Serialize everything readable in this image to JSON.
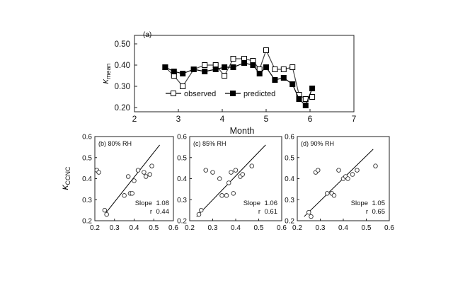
{
  "chart_data": [
    {
      "id": "top",
      "type": "line",
      "title": "",
      "panel_label": "(a)",
      "xlabel": "Month",
      "ylabel_main": "κ",
      "ylabel_sub": "mean",
      "xlim": [
        2,
        7
      ],
      "ylim": [
        0.18,
        0.54
      ],
      "xticks": [
        "2",
        "3",
        "4",
        "5",
        "6",
        "7"
      ],
      "yticks": [
        "0.20",
        "0.30",
        "0.40",
        "0.50"
      ],
      "legend_position": "bottom-center",
      "series": [
        {
          "name": "observed",
          "marker": "open-square",
          "x": [
            2.7,
            2.9,
            3.1,
            3.35,
            3.6,
            3.85,
            4.05,
            4.25,
            4.5,
            4.7,
            4.85,
            5.0,
            5.2,
            5.4,
            5.6,
            5.75,
            5.9,
            6.05
          ],
          "y": [
            0.39,
            0.35,
            0.3,
            0.38,
            0.4,
            0.4,
            0.35,
            0.43,
            0.43,
            0.42,
            0.38,
            0.47,
            0.38,
            0.38,
            0.39,
            0.26,
            0.24,
            0.25
          ]
        },
        {
          "name": "predicted",
          "marker": "filled-square",
          "x": [
            2.7,
            2.9,
            3.1,
            3.35,
            3.6,
            3.85,
            4.05,
            4.25,
            4.5,
            4.7,
            4.85,
            5.0,
            5.2,
            5.4,
            5.6,
            5.75,
            5.9,
            6.05
          ],
          "y": [
            0.39,
            0.37,
            0.36,
            0.38,
            0.37,
            0.38,
            0.39,
            0.39,
            0.41,
            0.4,
            0.36,
            0.39,
            0.33,
            0.34,
            0.31,
            0.24,
            0.21,
            0.29
          ]
        }
      ]
    },
    {
      "id": "b",
      "type": "scatter",
      "panel_label": "(b) 80% RH",
      "xlim": [
        0.2,
        0.6
      ],
      "ylim": [
        0.2,
        0.6
      ],
      "xticks": [
        "0.2",
        "0.3",
        "0.4",
        "0.5",
        "0.6"
      ],
      "yticks": [
        "0.2",
        "0.3",
        "0.4",
        "0.5",
        "0.6"
      ],
      "points": [
        [
          0.21,
          0.44
        ],
        [
          0.22,
          0.43
        ],
        [
          0.25,
          0.25
        ],
        [
          0.35,
          0.32
        ],
        [
          0.37,
          0.41
        ],
        [
          0.38,
          0.33
        ],
        [
          0.39,
          0.33
        ],
        [
          0.4,
          0.39
        ],
        [
          0.42,
          0.44
        ],
        [
          0.45,
          0.43
        ],
        [
          0.46,
          0.41
        ],
        [
          0.48,
          0.42
        ],
        [
          0.49,
          0.46
        ],
        [
          0.26,
          0.23
        ]
      ],
      "fit_line": [
        [
          0.25,
          0.23
        ],
        [
          0.53,
          0.56
        ]
      ],
      "slope_label": "Slope",
      "slope_value": "1.08",
      "r_label": "r",
      "r_value": "0.44"
    },
    {
      "id": "c",
      "type": "scatter",
      "panel_label": "(c) 85% RH",
      "xlim": [
        0.2,
        0.6
      ],
      "ylim": [
        0.2,
        0.6
      ],
      "xticks": [
        "0.2",
        "0.3",
        "0.4",
        "0.5",
        "0.6"
      ],
      "yticks": [
        "0.2",
        "0.3",
        "0.4",
        "0.5",
        "0.6"
      ],
      "points": [
        [
          0.24,
          0.23
        ],
        [
          0.27,
          0.44
        ],
        [
          0.3,
          0.43
        ],
        [
          0.33,
          0.4
        ],
        [
          0.34,
          0.32
        ],
        [
          0.36,
          0.32
        ],
        [
          0.37,
          0.38
        ],
        [
          0.38,
          0.43
        ],
        [
          0.39,
          0.33
        ],
        [
          0.4,
          0.44
        ],
        [
          0.42,
          0.41
        ],
        [
          0.43,
          0.42
        ],
        [
          0.47,
          0.46
        ],
        [
          0.25,
          0.25
        ]
      ],
      "fit_line": [
        [
          0.23,
          0.22
        ],
        [
          0.53,
          0.56
        ]
      ],
      "slope_label": "Slope",
      "slope_value": "1.06",
      "r_label": "r",
      "r_value": "0.61"
    },
    {
      "id": "d",
      "type": "scatter",
      "panel_label": "(d) 90% RH",
      "xlim": [
        0.2,
        0.6
      ],
      "ylim": [
        0.2,
        0.6
      ],
      "xticks": [
        "0.2",
        "0.3",
        "0.4",
        "0.5",
        "0.6"
      ],
      "yticks": [
        "0.2",
        "0.3",
        "0.4",
        "0.5",
        "0.6"
      ],
      "points": [
        [
          0.25,
          0.24
        ],
        [
          0.28,
          0.43
        ],
        [
          0.29,
          0.44
        ],
        [
          0.33,
          0.33
        ],
        [
          0.35,
          0.33
        ],
        [
          0.36,
          0.32
        ],
        [
          0.38,
          0.44
        ],
        [
          0.4,
          0.4
        ],
        [
          0.41,
          0.41
        ],
        [
          0.42,
          0.4
        ],
        [
          0.44,
          0.42
        ],
        [
          0.46,
          0.44
        ],
        [
          0.54,
          0.46
        ],
        [
          0.26,
          0.22
        ]
      ],
      "fit_line": [
        [
          0.23,
          0.22
        ],
        [
          0.53,
          0.54
        ]
      ],
      "slope_label": "Slope",
      "slope_value": "1.05",
      "r_label": "r",
      "r_value": "0.65"
    }
  ],
  "shared_ylabel_main": "κ",
  "shared_ylabel_sub": "CCNC"
}
